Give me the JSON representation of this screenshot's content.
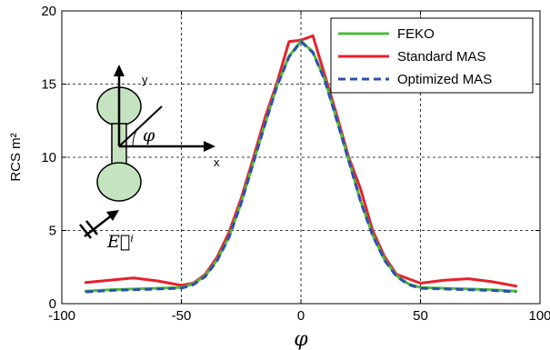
{
  "chart_data": {
    "type": "line",
    "title": "",
    "xlabel": "φ",
    "ylabel": "RCS m²",
    "xlim": [
      -100,
      100
    ],
    "ylim": [
      0,
      20
    ],
    "xticks": [
      -100,
      -50,
      0,
      50,
      100
    ],
    "yticks": [
      0,
      5,
      10,
      15,
      20
    ],
    "grid": true,
    "legend_position": "top-right",
    "x": [
      -90,
      -80,
      -70,
      -60,
      -50,
      -45,
      -40,
      -35,
      -30,
      -25,
      -20,
      -15,
      -10,
      -5,
      0,
      5,
      10,
      15,
      20,
      25,
      30,
      35,
      40,
      45,
      50,
      60,
      70,
      80,
      90
    ],
    "series": [
      {
        "name": "FEKO",
        "color": "#4cbb3c",
        "style": "solid",
        "values": [
          0.85,
          0.95,
          1.0,
          1.05,
          1.1,
          1.35,
          1.9,
          3.0,
          4.6,
          6.9,
          9.6,
          12.3,
          14.9,
          16.9,
          17.95,
          17.2,
          15.3,
          12.6,
          9.8,
          7.0,
          4.7,
          3.0,
          1.9,
          1.35,
          1.1,
          1.05,
          1.0,
          0.95,
          0.85
        ]
      },
      {
        "name": "Standard MAS",
        "color": "#e8212a",
        "style": "solid",
        "values": [
          1.45,
          1.6,
          1.75,
          1.55,
          1.25,
          1.4,
          2.0,
          3.2,
          4.9,
          7.2,
          9.9,
          12.7,
          15.1,
          17.9,
          18.0,
          18.3,
          15.6,
          12.9,
          10.0,
          7.8,
          5.0,
          3.2,
          2.0,
          1.7,
          1.4,
          1.6,
          1.7,
          1.5,
          1.2
        ]
      },
      {
        "name": "Optimized MAS",
        "color": "#2c4fb4",
        "style": "dashed",
        "values": [
          0.8,
          0.9,
          0.95,
          1.0,
          1.05,
          1.3,
          1.85,
          2.95,
          4.55,
          6.85,
          9.55,
          12.25,
          14.85,
          16.85,
          17.9,
          17.15,
          15.25,
          12.55,
          9.75,
          6.95,
          4.65,
          2.95,
          1.85,
          1.3,
          1.05,
          1.0,
          0.95,
          0.9,
          0.8
        ]
      }
    ],
    "inset": {
      "axis_x_label": "x",
      "axis_y_label": "y",
      "angle_label": "φ",
      "field_label": "E⃗ⁱ",
      "scatterer_fill": "#c5e3c0"
    }
  }
}
